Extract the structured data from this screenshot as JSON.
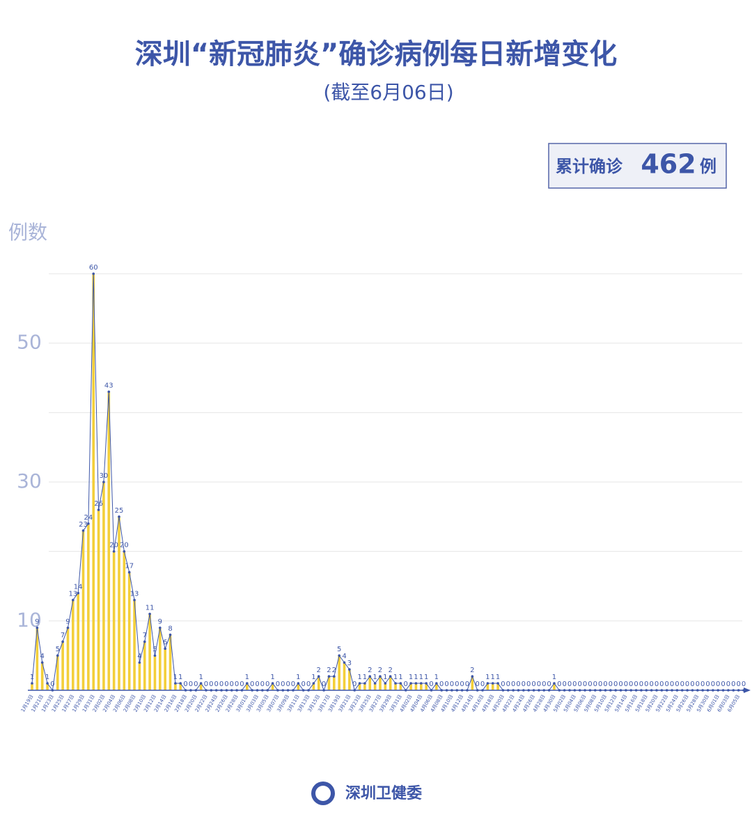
{
  "chart_data": {
    "type": "bar-line",
    "title": "深圳“新冠肺炎”确诊病例每日新增变化",
    "subtitle": "(截至6月06日)",
    "summary": {
      "label": "累计确诊",
      "value": 462,
      "unit": "例"
    },
    "y_label": "例数",
    "source": "深圳卫健委",
    "categories": [
      "1月19日",
      null,
      "1月21日",
      null,
      "1月23日",
      null,
      "1月25日",
      null,
      "1月27日",
      null,
      "1月29日",
      null,
      "1月31日",
      null,
      "2月02日",
      null,
      "2月04日",
      null,
      "2月06日",
      null,
      "2月08日",
      null,
      "2月10日",
      null,
      "2月12日",
      null,
      "2月14日",
      null,
      "2月16日",
      null,
      "2月18日",
      null,
      "2月20日",
      null,
      "2月22日",
      null,
      "2月24日",
      null,
      "2月26日",
      null,
      "2月28日",
      null,
      "3月01日",
      null,
      "3月03日",
      null,
      "3月05日",
      null,
      "3月07日",
      null,
      "3月09日",
      null,
      "3月11日",
      null,
      "3月13日",
      null,
      "3月15日",
      null,
      "3月17日",
      null,
      "3月19日",
      null,
      "3月21日",
      null,
      "3月23日",
      null,
      "3月25日",
      null,
      "3月27日",
      null,
      "3月29日",
      null,
      "3月31日",
      null,
      "4月02日",
      null,
      "4月04日",
      null,
      "4月06日",
      null,
      "4月08日",
      null,
      "4月10日",
      null,
      "4月12日",
      null,
      "4月14日",
      null,
      "4月16日",
      null,
      "4月18日",
      null,
      "4月20日",
      null,
      "4月22日",
      null,
      "4月24日",
      null,
      "4月26日",
      null,
      "4月28日",
      null,
      "4月30日",
      null,
      "5月02日",
      null,
      "5月04日",
      null,
      "5月06日",
      null,
      "5月08日",
      null,
      "5月10日",
      null,
      "5月12日",
      null,
      "5月14日",
      null,
      "5月16日",
      null,
      "5月18日",
      null,
      "5月20日",
      null,
      "5月22日",
      null,
      "5月24日",
      null,
      "5月26日",
      null,
      "5月28日",
      null,
      "5月30日",
      null,
      "6月01日",
      null,
      "6月03日",
      null,
      "6月05日",
      null
    ],
    "values": [
      1,
      9,
      4,
      1,
      0,
      5,
      7,
      9,
      13,
      14,
      23,
      24,
      60,
      26,
      30,
      43,
      20,
      25,
      20,
      17,
      13,
      4,
      7,
      11,
      5,
      9,
      6,
      8,
      1,
      1,
      0,
      0,
      0,
      1,
      0,
      0,
      0,
      0,
      0,
      0,
      0,
      0,
      1,
      0,
      0,
      0,
      0,
      1,
      0,
      0,
      0,
      0,
      1,
      0,
      0,
      1,
      2,
      0,
      2,
      2,
      5,
      4,
      3,
      0,
      1,
      1,
      2,
      1,
      2,
      1,
      2,
      1,
      1,
      0,
      1,
      1,
      1,
      1,
      0,
      1,
      0,
      0,
      0,
      0,
      0,
      0,
      2,
      0,
      0,
      1,
      1,
      1,
      0,
      0,
      0,
      0,
      0,
      0,
      0,
      0,
      0,
      0,
      1,
      0,
      0,
      0,
      0,
      0,
      0,
      0,
      0,
      0,
      0,
      0,
      0,
      0,
      0,
      0,
      0,
      0,
      0,
      0,
      0,
      0,
      0,
      0,
      0,
      0,
      0,
      0,
      0,
      0,
      0,
      0,
      0,
      0,
      0,
      0,
      0,
      0
    ],
    "bar_color": "#f3cf3a",
    "line_color": "#3d56a8",
    "ylim": [
      0,
      60
    ],
    "yticks": [
      10,
      30,
      50
    ],
    "minor_yticks": [
      20,
      40,
      60
    ],
    "grid": true
  }
}
